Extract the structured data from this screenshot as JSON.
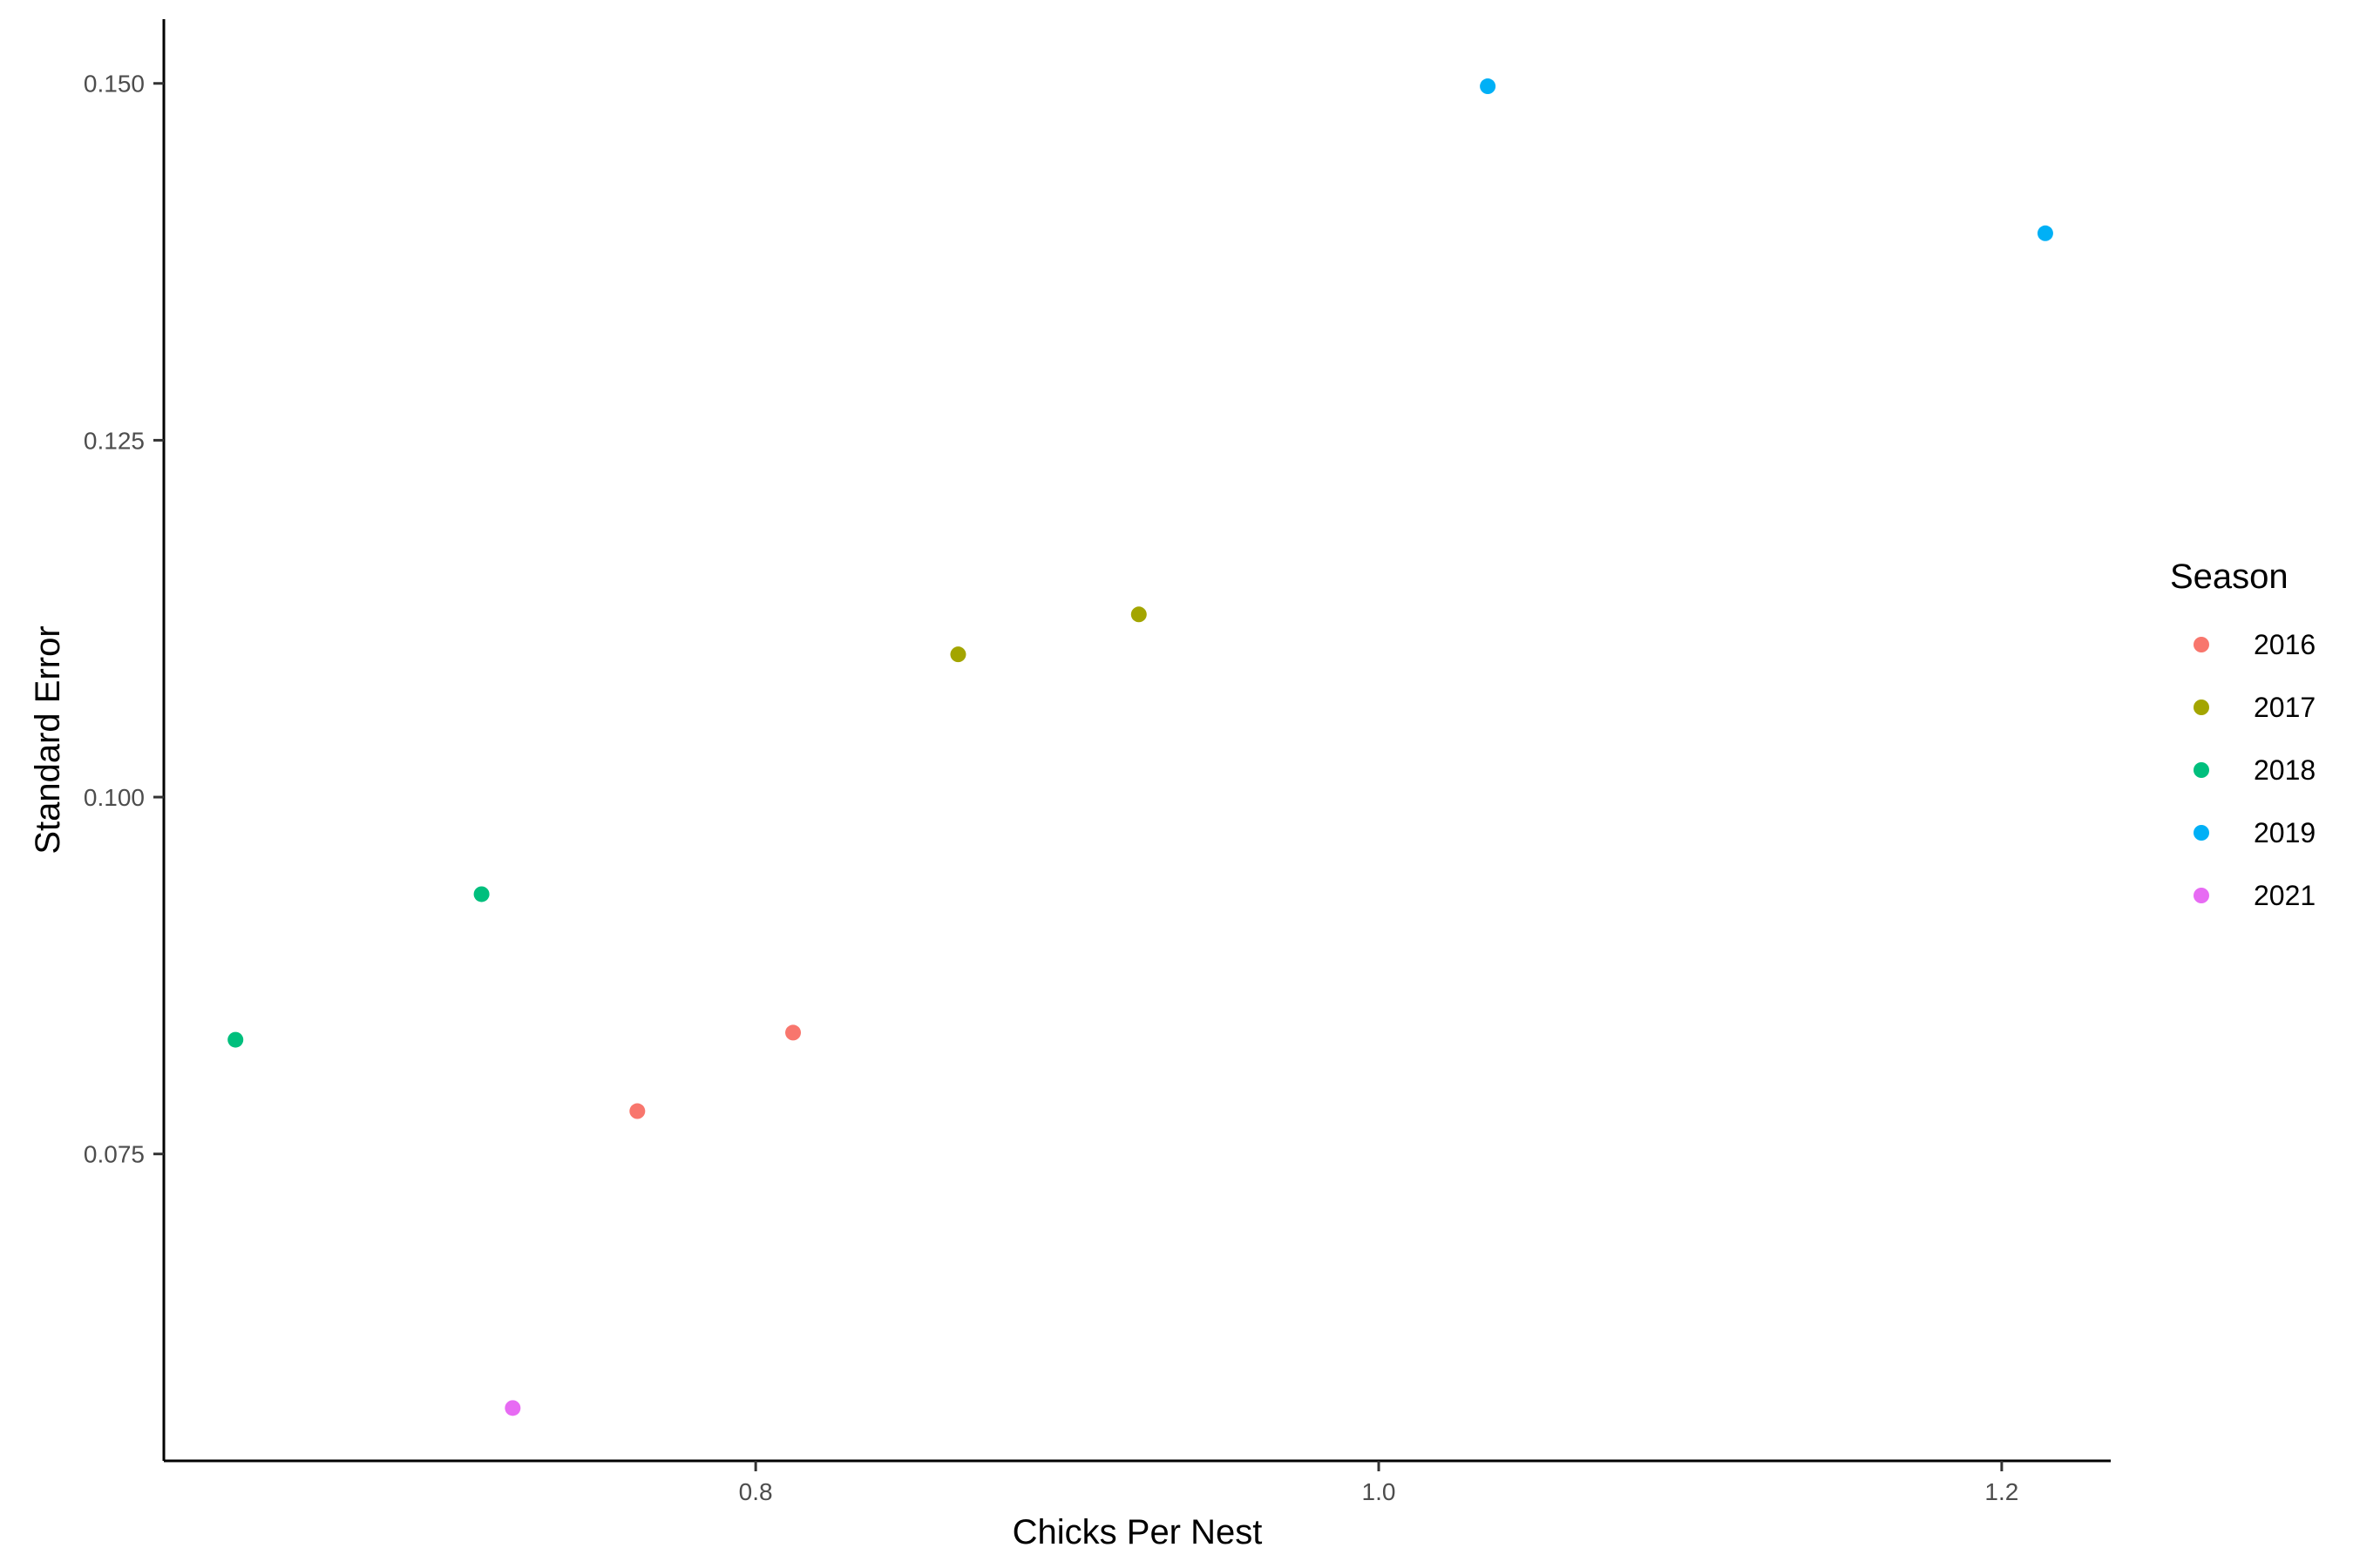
{
  "chart_data": {
    "type": "scatter",
    "title": "",
    "xlabel": "Chicks Per Nest",
    "ylabel": "Standard Error",
    "xlim": [
      0.61,
      1.235
    ],
    "ylim": [
      0.0535,
      0.1545
    ],
    "x_ticks": [
      {
        "value": 0.8,
        "label": "0.8"
      },
      {
        "value": 1.0,
        "label": "1.0"
      },
      {
        "value": 1.2,
        "label": "1.2"
      }
    ],
    "y_ticks": [
      {
        "value": 0.075,
        "label": "0.075"
      },
      {
        "value": 0.1,
        "label": "0.100"
      },
      {
        "value": 0.125,
        "label": "0.125"
      },
      {
        "value": 0.15,
        "label": "0.150"
      }
    ],
    "grid": false,
    "legend": {
      "title": "Season",
      "position": "right"
    },
    "series": [
      {
        "name": "2016",
        "color": "#F8766D",
        "points": [
          [
            0.762,
            0.078
          ],
          [
            0.812,
            0.0835
          ]
        ]
      },
      {
        "name": "2017",
        "color": "#A3A500",
        "points": [
          [
            0.865,
            0.11
          ],
          [
            0.923,
            0.1128
          ]
        ]
      },
      {
        "name": "2018",
        "color": "#00BF7D",
        "points": [
          [
            0.633,
            0.083
          ],
          [
            0.712,
            0.0932
          ]
        ]
      },
      {
        "name": "2019",
        "color": "#00B0F6",
        "points": [
          [
            1.035,
            0.1498
          ],
          [
            1.214,
            0.1395
          ]
        ]
      },
      {
        "name": "2021",
        "color": "#E76BF3",
        "points": [
          [
            0.722,
            0.0572
          ]
        ]
      }
    ]
  }
}
